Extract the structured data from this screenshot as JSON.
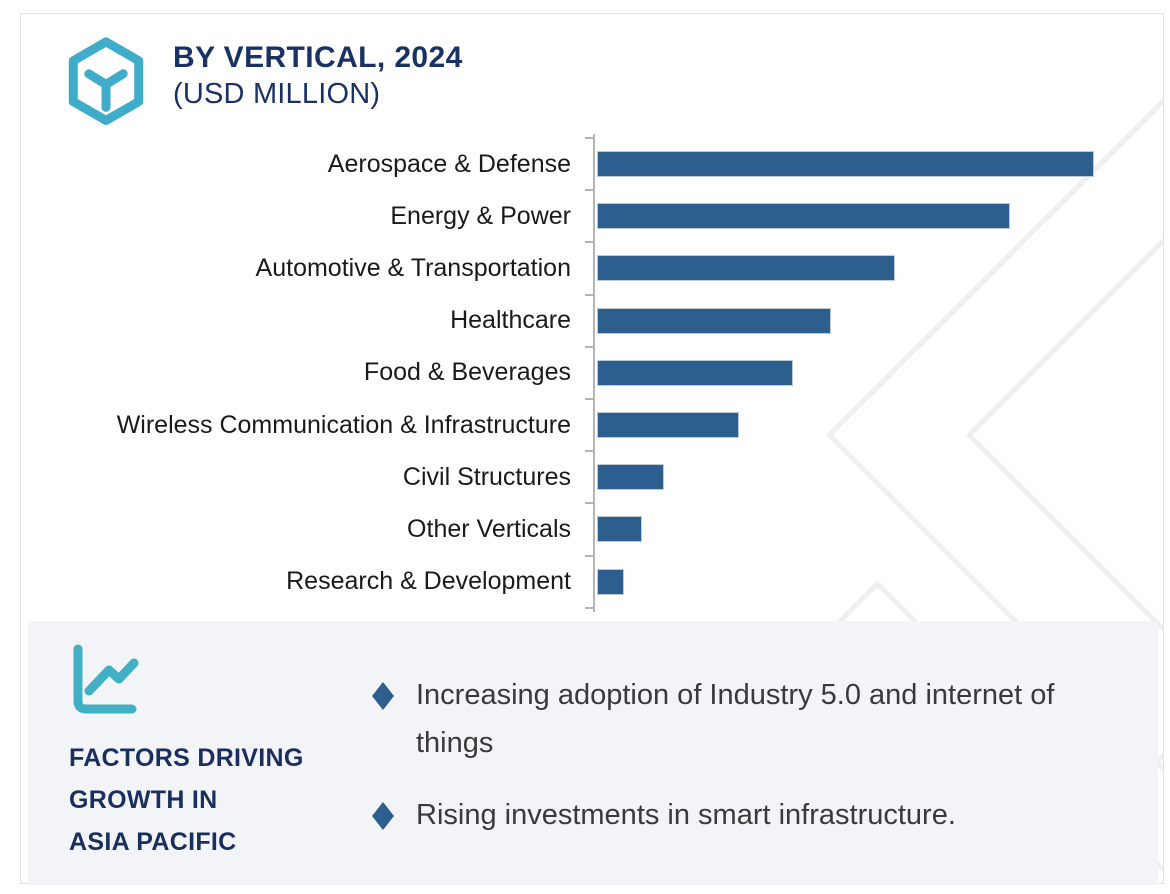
{
  "header": {
    "title": "BY VERTICAL, 2024",
    "subtitle": "(USD MILLION)"
  },
  "chart_data": {
    "type": "bar",
    "orientation": "horizontal",
    "title": "BY VERTICAL, 2024 (USD MILLION)",
    "categories": [
      "Aerospace & Defense",
      "Energy & Power",
      "Automotive & Transportation",
      "Healthcare",
      "Food & Beverages",
      "Wireless Communication & Infrastructure",
      "Civil Structures",
      "Other Verticals",
      "Research & Development"
    ],
    "values": [
      100,
      83,
      60,
      47,
      39.5,
      28.5,
      13.5,
      9,
      5.5
    ],
    "value_note": "no numeric axis shown; values are bar lengths as % of longest bar",
    "xlabel": "",
    "ylabel": "",
    "grid": false,
    "legend": false,
    "bar_color": "#2d5f8e",
    "axis_color": "#b5b5b5"
  },
  "factors": {
    "title_lines": [
      "FACTORS DRIVING",
      "GROWTH IN",
      "ASIA PACIFIC"
    ],
    "bullets": [
      "Increasing adoption of Industry 5.0 and internet of things",
      "Rising investments in smart infrastructure."
    ]
  },
  "colors": {
    "accent_teal": "#3fadc9",
    "navy": "#1a3263",
    "bar_blue": "#2d5f8e",
    "panel_bg": "#f2f4f8",
    "watermark": "#efefef"
  },
  "icons": {
    "brand": "hexagon-cube-icon",
    "panel": "line-chart-icon",
    "bullet": "diamond-bullet-icon"
  }
}
